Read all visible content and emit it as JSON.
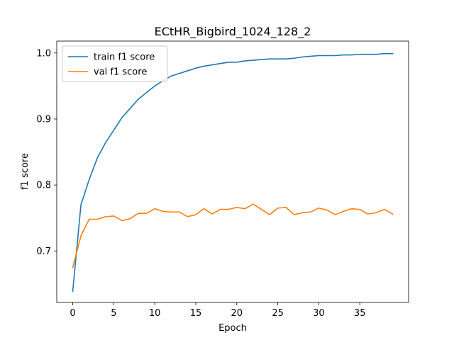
{
  "chart_data": {
    "type": "line",
    "title": "ECtHR_Bigbird_1024_128_2",
    "xlabel": "Epoch",
    "ylabel": "f1 score",
    "xlim": [
      -1.95,
      40.95
    ],
    "ylim": [
      0.622,
      1.018
    ],
    "xticks": [
      0,
      5,
      10,
      15,
      20,
      25,
      30,
      35
    ],
    "yticks": [
      0.7,
      0.8,
      0.9,
      1.0
    ],
    "ytick_labels": [
      "0.7",
      "0.8",
      "0.9",
      "1.0"
    ],
    "grid": false,
    "legend_position": "upper-left",
    "x": [
      0,
      1,
      2,
      3,
      4,
      5,
      6,
      7,
      8,
      9,
      10,
      11,
      12,
      13,
      14,
      15,
      16,
      17,
      18,
      19,
      20,
      21,
      22,
      23,
      24,
      25,
      26,
      27,
      28,
      29,
      30,
      31,
      32,
      33,
      34,
      35,
      36,
      37,
      38,
      39
    ],
    "series": [
      {
        "name": "train f1 score",
        "color": "#1f77b4",
        "values": [
          0.639,
          0.77,
          0.808,
          0.841,
          0.864,
          0.883,
          0.902,
          0.916,
          0.93,
          0.94,
          0.95,
          0.958,
          0.965,
          0.969,
          0.973,
          0.977,
          0.98,
          0.982,
          0.984,
          0.986,
          0.986,
          0.988,
          0.989,
          0.99,
          0.991,
          0.991,
          0.991,
          0.992,
          0.994,
          0.995,
          0.996,
          0.996,
          0.996,
          0.997,
          0.997,
          0.998,
          0.998,
          0.998,
          0.999,
          0.999
        ]
      },
      {
        "name": "val f1 score",
        "color": "#ff7f0e",
        "values": [
          0.675,
          0.723,
          0.748,
          0.748,
          0.752,
          0.753,
          0.746,
          0.749,
          0.757,
          0.757,
          0.764,
          0.76,
          0.759,
          0.759,
          0.752,
          0.755,
          0.764,
          0.756,
          0.763,
          0.763,
          0.766,
          0.764,
          0.771,
          0.763,
          0.755,
          0.765,
          0.766,
          0.755,
          0.758,
          0.759,
          0.765,
          0.762,
          0.755,
          0.76,
          0.764,
          0.763,
          0.756,
          0.758,
          0.763,
          0.756
        ]
      }
    ]
  }
}
